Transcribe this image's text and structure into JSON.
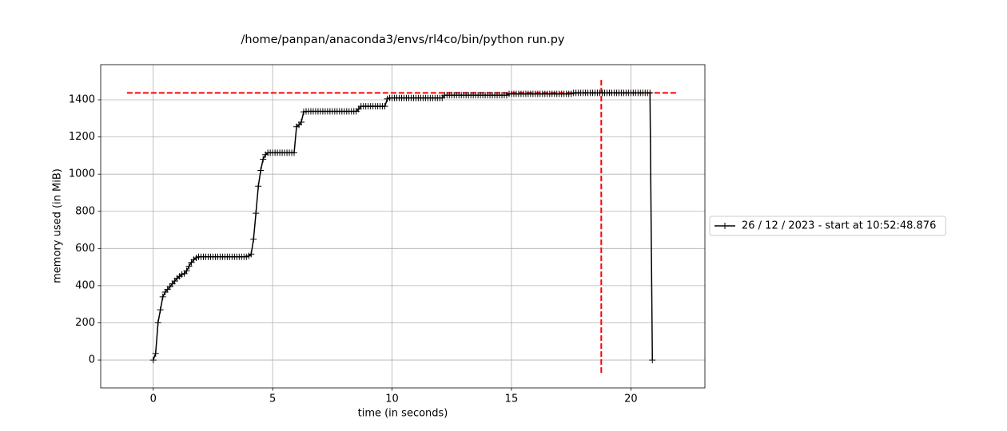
{
  "chart_data": {
    "type": "line",
    "title": "/home/panpan/anaconda3/envs/rl4co/bin/python run.py",
    "x_label": "time (in seconds)",
    "y_label": "memory used (in MiB)",
    "xlim": [
      -2.2,
      23.1
    ],
    "ylim": [
      -150,
      1589
    ],
    "xticks": [
      0,
      5,
      10,
      15,
      20
    ],
    "yticks": [
      0,
      200,
      400,
      600,
      800,
      1000,
      1200,
      1400
    ],
    "grid": true,
    "legend": "outside right",
    "marker": "+",
    "x": [
      0,
      0.1,
      0.2,
      0.3,
      0.4,
      0.5,
      0.6,
      0.7,
      0.8,
      0.9,
      1,
      1.1,
      1.2,
      1.3,
      1.4,
      1.5,
      1.6,
      1.7,
      1.8,
      1.9,
      2,
      2.1,
      2.2,
      2.3,
      2.4,
      2.5,
      2.6,
      2.7,
      2.8,
      2.9,
      3,
      3.1,
      3.2,
      3.3,
      3.4,
      3.5,
      3.6,
      3.7,
      3.8,
      3.9,
      4,
      4.1,
      4.2,
      4.3,
      4.4,
      4.5,
      4.6,
      4.7,
      4.8,
      4.9,
      5,
      5.1,
      5.2,
      5.3,
      5.4,
      5.5,
      5.6,
      5.7,
      5.8,
      5.9,
      6,
      6.1,
      6.2,
      6.3,
      6.4,
      6.5,
      6.6,
      6.7,
      6.8,
      6.9,
      7,
      7.1,
      7.2,
      7.3,
      7.4,
      7.5,
      7.6,
      7.7,
      7.8,
      7.9,
      8,
      8.1,
      8.2,
      8.3,
      8.4,
      8.5,
      8.6,
      8.7,
      8.8,
      8.9,
      9,
      9.1,
      9.2,
      9.3,
      9.4,
      9.5,
      9.6,
      9.7,
      9.8,
      9.9,
      10,
      10.1,
      10.2,
      10.3,
      10.4,
      10.5,
      10.6,
      10.7,
      10.8,
      10.9,
      11,
      11.1,
      11.2,
      11.3,
      11.4,
      11.5,
      11.6,
      11.7,
      11.8,
      11.9,
      12,
      12.1,
      12.2,
      12.3,
      12.4,
      12.5,
      12.6,
      12.7,
      12.8,
      12.9,
      13,
      13.1,
      13.2,
      13.3,
      13.4,
      13.5,
      13.6,
      13.7,
      13.8,
      13.9,
      14,
      14.1,
      14.2,
      14.3,
      14.4,
      14.5,
      14.6,
      14.7,
      14.8,
      14.9,
      15,
      15.1,
      15.2,
      15.3,
      15.4,
      15.5,
      15.6,
      15.7,
      15.8,
      15.9,
      16,
      16.1,
      16.2,
      16.3,
      16.4,
      16.5,
      16.6,
      16.7,
      16.8,
      16.9,
      17,
      17.1,
      17.2,
      17.3,
      17.4,
      17.5,
      17.6,
      17.7,
      17.8,
      17.9,
      18,
      18.1,
      18.2,
      18.3,
      18.4,
      18.5,
      18.6,
      18.7,
      18.8,
      18.9,
      19,
      19.1,
      19.2,
      19.3,
      19.4,
      19.5,
      19.6,
      19.7,
      19.8,
      19.9,
      20,
      20.1,
      20.2,
      20.3,
      20.4,
      20.5,
      20.6,
      20.7,
      20.8,
      20.9
    ],
    "series": [
      {
        "name": "26 / 12 / 2023 - start at 10:52:48.876",
        "color": "#000000",
        "values": [
          0,
          35,
          200,
          270,
          340,
          365,
          380,
          395,
          410,
          425,
          440,
          450,
          460,
          465,
          480,
          505,
          525,
          540,
          550,
          555,
          555,
          555,
          555,
          555,
          555,
          555,
          555,
          555,
          555,
          555,
          555,
          555,
          555,
          555,
          555,
          555,
          555,
          555,
          555,
          555,
          560,
          570,
          650,
          790,
          935,
          1020,
          1080,
          1105,
          1115,
          1115,
          1115,
          1115,
          1115,
          1115,
          1115,
          1115,
          1115,
          1115,
          1115,
          1115,
          1255,
          1265,
          1280,
          1335,
          1338,
          1338,
          1338,
          1338,
          1338,
          1338,
          1338,
          1338,
          1338,
          1338,
          1338,
          1338,
          1338,
          1338,
          1338,
          1338,
          1338,
          1338,
          1338,
          1338,
          1338,
          1338,
          1350,
          1365,
          1365,
          1365,
          1365,
          1365,
          1365,
          1365,
          1365,
          1365,
          1365,
          1365,
          1405,
          1410,
          1410,
          1410,
          1410,
          1410,
          1410,
          1410,
          1410,
          1410,
          1410,
          1410,
          1410,
          1410,
          1410,
          1410,
          1410,
          1410,
          1410,
          1410,
          1410,
          1410,
          1410,
          1410,
          1425,
          1425,
          1425,
          1425,
          1425,
          1425,
          1425,
          1425,
          1425,
          1425,
          1425,
          1425,
          1425,
          1425,
          1425,
          1425,
          1425,
          1425,
          1425,
          1425,
          1425,
          1425,
          1425,
          1425,
          1425,
          1425,
          1425,
          1432,
          1432,
          1432,
          1432,
          1432,
          1432,
          1432,
          1432,
          1432,
          1432,
          1432,
          1432,
          1432,
          1432,
          1432,
          1432,
          1432,
          1432,
          1432,
          1432,
          1432,
          1432,
          1432,
          1432,
          1432,
          1432,
          1432,
          1437,
          1437,
          1437,
          1437,
          1437,
          1437,
          1437,
          1437,
          1437,
          1437,
          1437,
          1437,
          1437,
          1437,
          1437,
          1437,
          1437,
          1437,
          1437,
          1437,
          1437,
          1437,
          1437,
          1437,
          1437,
          1437,
          1437,
          1437,
          1437,
          1437,
          1437,
          1437,
          1437,
          0
        ]
      }
    ],
    "reference_lines": [
      {
        "orientation": "horizontal",
        "value": 1437,
        "span": [
          -1.1,
          21.9
        ],
        "color": "#ff0000"
      },
      {
        "orientation": "vertical",
        "value": 18.76,
        "span": [
          -69,
          1511
        ],
        "color": "#ff0000"
      }
    ]
  }
}
